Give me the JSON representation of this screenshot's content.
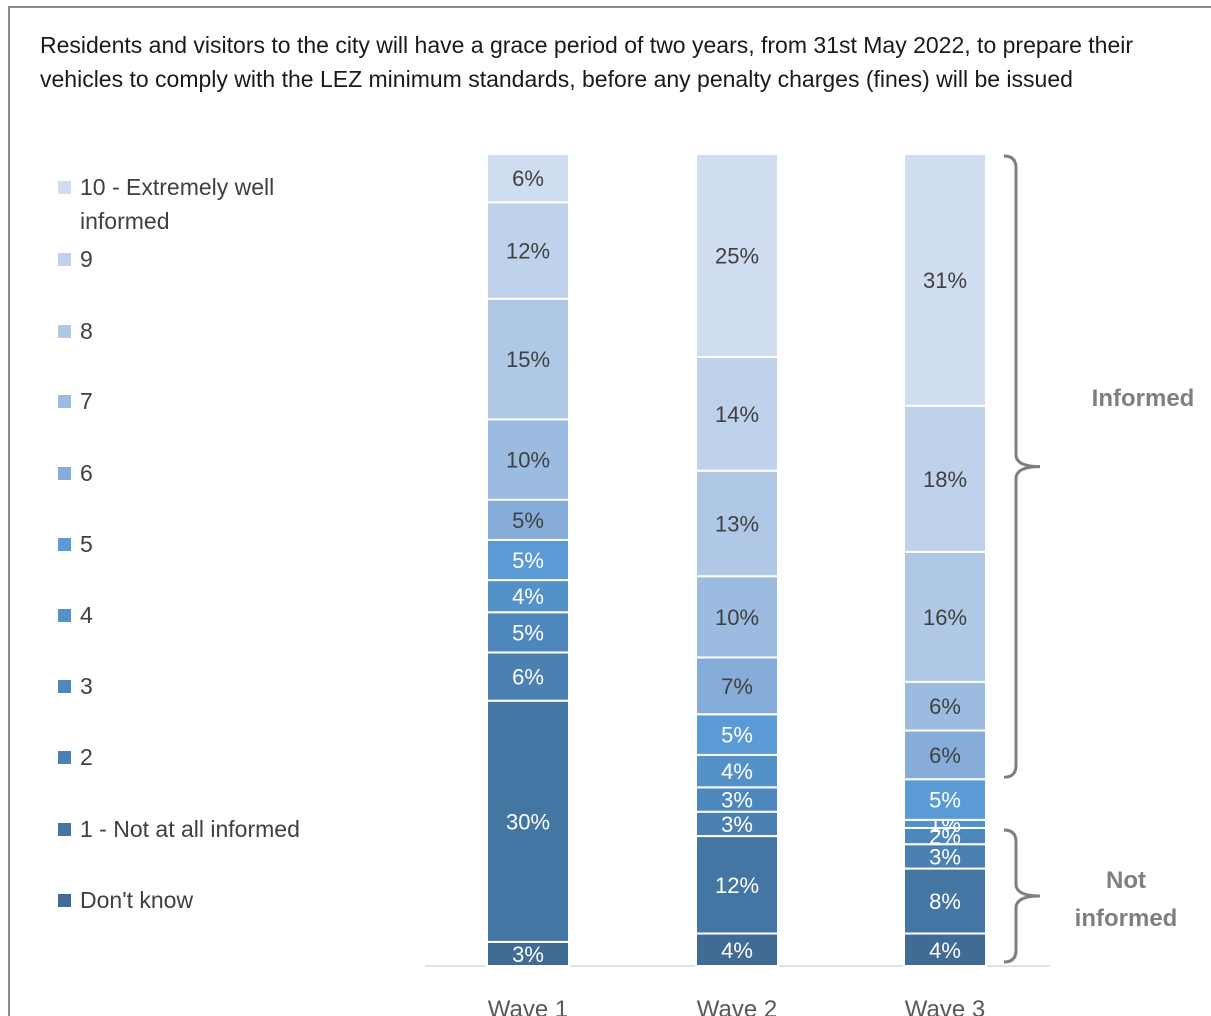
{
  "chart_data": {
    "type": "bar",
    "stacked": true,
    "title": "Residents and visitors to the city will have a grace period of two years, from 31st May 2022, to prepare their vehicles to comply with the LEZ minimum standards, before any penalty charges (fines) will be issued",
    "categories": [
      "Wave 1",
      "Wave 2",
      "Wave 3"
    ],
    "legend_position": "left",
    "series": [
      {
        "name": "Don't know",
        "color": "#3f6b94",
        "values": [
          3,
          4,
          4
        ]
      },
      {
        "name": "1 - Not at all informed",
        "color": "#4476a3",
        "values": [
          30,
          12,
          8
        ]
      },
      {
        "name": "2",
        "color": "#4a80b2",
        "values": [
          6,
          3,
          3
        ]
      },
      {
        "name": "3",
        "color": "#4d87bd",
        "values": [
          5,
          3,
          2
        ]
      },
      {
        "name": "4",
        "color": "#5591c9",
        "values": [
          4,
          4,
          1
        ]
      },
      {
        "name": "5",
        "color": "#5b9bd5",
        "values": [
          5,
          5,
          5
        ]
      },
      {
        "name": "6",
        "color": "#86acd9",
        "values": [
          5,
          7,
          6
        ]
      },
      {
        "name": "7",
        "color": "#9bbbe0",
        "values": [
          10,
          10,
          6
        ]
      },
      {
        "name": "8",
        "color": "#afc8e6",
        "values": [
          15,
          13,
          16
        ]
      },
      {
        "name": "9",
        "color": "#bfd2ec",
        "values": [
          12,
          14,
          18
        ]
      },
      {
        "name": "10 - Extremely well informed",
        "color": "#d0ddf0",
        "values": [
          6,
          25,
          31
        ]
      }
    ],
    "value_labels": [
      [
        "3%",
        "30%",
        "6%",
        "5%",
        "4%",
        "5%",
        "5%",
        "10%",
        "15%",
        "12%",
        "6%"
      ],
      [
        "4%",
        "12%",
        "3%",
        "3%",
        "4%",
        "5%",
        "7%",
        "10%",
        "13%",
        "14%",
        "25%"
      ],
      [
        "4%",
        "8%",
        "3%",
        "2%",
        "1%",
        "5%",
        "6%",
        "6%",
        "16%",
        "18%",
        "31%"
      ]
    ],
    "label_color_dark": "#ffffff",
    "label_color_light": "#404040",
    "annotations": [
      {
        "text": "Informed",
        "bracket_series": [
          "6",
          "7",
          "8",
          "9",
          "10 - Extremely well informed"
        ],
        "category": "Wave 3"
      },
      {
        "text": "Not informed",
        "bracket_series": [
          "Don't know",
          "1 - Not at all informed",
          "2",
          "3"
        ],
        "category": "Wave 3"
      }
    ],
    "annotation_color": "#7f7f7f"
  },
  "legend_order_top_to_bottom": [
    "10 - Extremely well informed",
    "9",
    "8",
    "7",
    "6",
    "5",
    "4",
    "3",
    "2",
    "1 - Not at all informed",
    "Don't know"
  ]
}
